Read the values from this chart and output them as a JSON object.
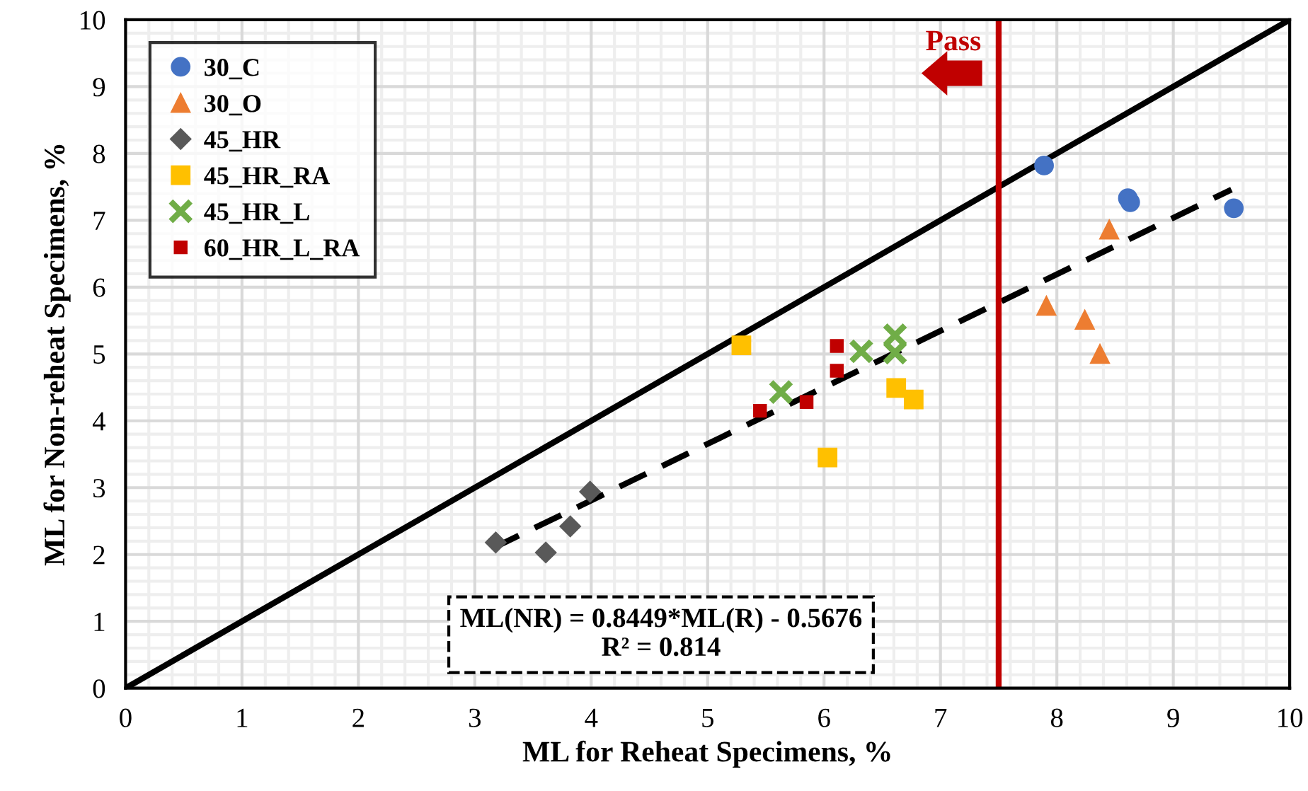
{
  "chart_data": {
    "type": "scatter",
    "xlabel": "ML for Reheat Specimens, %",
    "ylabel": "ML for Non-reheat Specimens, %",
    "xlim": [
      0,
      10
    ],
    "ylim": [
      0,
      10
    ],
    "xticks": [
      0,
      1,
      2,
      3,
      4,
      5,
      6,
      7,
      8,
      9,
      10
    ],
    "yticks": [
      0,
      1,
      2,
      3,
      4,
      5,
      6,
      7,
      8,
      9,
      10
    ],
    "grid": true,
    "legend": "top left",
    "series": [
      {
        "name": "30_C",
        "color": "#4472c4",
        "marker": "circle",
        "x": [
          7.89,
          8.61,
          8.63,
          9.52
        ],
        "values": [
          7.82,
          7.33,
          7.27,
          7.18
        ]
      },
      {
        "name": "30_O",
        "color": "#ed7d31",
        "marker": "triangle",
        "x": [
          8.45,
          7.91,
          8.24,
          8.37
        ],
        "values": [
          6.86,
          5.72,
          5.51,
          5.0
        ]
      },
      {
        "name": "45_HR",
        "color": "#595959",
        "marker": "diamond",
        "x": [
          3.18,
          3.61,
          3.82,
          3.99
        ],
        "values": [
          2.18,
          2.03,
          2.42,
          2.94
        ]
      },
      {
        "name": "45_HR_RA",
        "color": "#ffc000",
        "marker": "square",
        "x": [
          5.29,
          6.03,
          6.62,
          6.77
        ],
        "values": [
          5.13,
          3.45,
          4.49,
          4.32
        ]
      },
      {
        "name": "45_HR_L",
        "color": "#70ad47",
        "marker": "cross",
        "x": [
          5.63,
          6.32,
          6.61,
          6.61
        ],
        "values": [
          4.43,
          5.04,
          5.28,
          5.02
        ]
      },
      {
        "name": "60_HR_L_RA",
        "color": "#c00000",
        "marker": "square",
        "x": [
          5.45,
          5.85,
          6.11,
          6.11
        ],
        "values": [
          4.15,
          4.28,
          5.12,
          4.75
        ]
      },
      {
        "type": "line",
        "color": "#000000",
        "line_style": "solid",
        "x": [
          0,
          10
        ],
        "values": [
          0,
          10
        ]
      },
      {
        "type": "line",
        "color": "#000000",
        "line_style": "dashed",
        "x": [
          3.15,
          9.5
        ],
        "values": [
          2.09,
          7.46
        ]
      }
    ],
    "ref_lines": [
      {
        "axis": "x",
        "value": 7.5,
        "label": "Pass",
        "color": "#c00000"
      }
    ],
    "annotations": [
      "ML(NR) = 0.8449*ML(R) - 0.5676\nR² = 0.814"
    ]
  }
}
